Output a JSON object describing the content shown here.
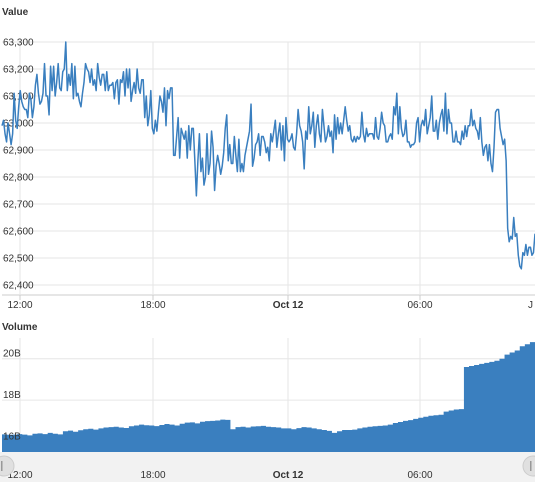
{
  "colors": {
    "line": "#3a7fbf",
    "bar": "#3a7fbf",
    "grid": "#e6e6e6",
    "nav_bg": "#f2f2f2",
    "nav_handle": "#e0e0e0"
  },
  "icons": {
    "nav_left": "circle-handle",
    "nav_right": "circle-handle"
  },
  "chart_data": [
    {
      "type": "line",
      "title": "Value",
      "ylim": [
        62400,
        63300
      ],
      "y_ticks": [
        "62,400",
        "62,500",
        "62,600",
        "62,700",
        "62,800",
        "62,900",
        "63,000",
        "63,100",
        "63,200",
        "63,300"
      ],
      "x_ticks": [
        {
          "label": "12:00",
          "bold": false
        },
        {
          "label": "18:00",
          "bold": false
        },
        {
          "label": "Oct 12",
          "bold": true
        },
        {
          "label": "06:00",
          "bold": false
        },
        {
          "label": "J",
          "bold": false
        }
      ],
      "grid": true,
      "series": [
        {
          "values": [
            62990,
            63010,
            62960,
            62930,
            63000,
            62960,
            62920,
            62960,
            63110,
            63010,
            62980,
            63060,
            63120,
            63080,
            63060,
            63050,
            63050,
            63020,
            63110,
            63090,
            63020,
            63060,
            63140,
            63180,
            63110,
            63070,
            63080,
            63110,
            63220,
            63100,
            63100,
            63030,
            63210,
            63120,
            63210,
            63100,
            63150,
            63220,
            63130,
            63120,
            63190,
            63200,
            63300,
            63120,
            63180,
            63140,
            63220,
            63090,
            63210,
            63100,
            63110,
            63080,
            63060,
            63110,
            63150,
            63220,
            63200,
            63190,
            63150,
            63200,
            63140,
            63160,
            63120,
            63220,
            63170,
            63140,
            63180,
            63180,
            63120,
            63190,
            63120,
            63140,
            63140,
            63150,
            63090,
            63150,
            63160,
            63070,
            63160,
            63150,
            63190,
            63100,
            63200,
            63130,
            63200,
            63080,
            63120,
            63150,
            63110,
            63200,
            63130,
            63110,
            63160,
            63160,
            63020,
            63100,
            62990,
            63030,
            63120,
            62980,
            62960,
            63010,
            62970,
            63040,
            63100,
            63080,
            63040,
            63130,
            62990,
            63120,
            63090,
            63130,
            63130,
            62880,
            62880,
            62950,
            63020,
            62870,
            62980,
            62960,
            62940,
            62970,
            62870,
            62990,
            62900,
            62980,
            62980,
            62860,
            62730,
            62860,
            62960,
            62820,
            62870,
            62770,
            62800,
            62960,
            62810,
            62850,
            62970,
            62910,
            62750,
            62840,
            62880,
            62850,
            62810,
            62840,
            62890,
            62980,
            63030,
            62860,
            62920,
            62850,
            62850,
            62950,
            62880,
            62820,
            62940,
            62820,
            62850,
            62820,
            62880,
            62910,
            62940,
            62970,
            63070,
            62840,
            62870,
            62920,
            62930,
            62960,
            62880,
            62950,
            62950,
            62930,
            62890,
            62910,
            62860,
            62960,
            62930,
            62970,
            63010,
            62910,
            62960,
            63000,
            62900,
            62990,
            62860,
            63020,
            62940,
            62930,
            62940,
            62960,
            62910,
            62900,
            62960,
            63050,
            62990,
            62970,
            62930,
            62830,
            62970,
            62940,
            63060,
            62960,
            62990,
            63040,
            62910,
            62990,
            63030,
            62960,
            62930,
            63050,
            62990,
            62930,
            62950,
            62990,
            62950,
            62970,
            62890,
            63030,
            62940,
            63020,
            62960,
            63000,
            62960,
            63010,
            63060,
            63010,
            62970,
            62990,
            62940,
            62930,
            62950,
            62930,
            62950,
            62940,
            62950,
            63040,
            62960,
            62930,
            62980,
            62950,
            62960,
            62960,
            62960,
            62940,
            63020,
            62950,
            62940,
            62980,
            63040,
            63000,
            62990,
            62930,
            62930,
            62950,
            62960,
            62940,
            63060,
            63030,
            63110,
            62960,
            63060,
            62980,
            62950,
            62960,
            63010,
            62930,
            62930,
            62910,
            62920,
            62920,
            62930,
            63000,
            63020,
            62930,
            62990,
            63010,
            62990,
            63050,
            62960,
            62990,
            63020,
            63100,
            62970,
            62970,
            63010,
            62940,
            63000,
            63030,
            63050,
            62970,
            63110,
            62960,
            63050,
            63000,
            63000,
            62930,
            62930,
            62970,
            62930,
            62930,
            62920,
            62970,
            62940,
            62990,
            62950,
            62990,
            62990,
            63050,
            62990,
            63010,
            62980,
            62970,
            62940,
            63020,
            62930,
            62880,
            62910,
            62920,
            62860,
            62920,
            62850,
            62820,
            62910,
            63040,
            63050,
            63050,
            62980,
            62950,
            62920,
            62940,
            62860,
            62610,
            62560,
            62580,
            62570,
            62650,
            62580,
            62590,
            62510,
            62470,
            62460,
            62520,
            62510,
            62550,
            62510,
            62540,
            62540,
            62510,
            62520,
            62590
          ]
        }
      ]
    },
    {
      "type": "area",
      "title": "Volume",
      "ylim": [
        15500000000,
        21000000000
      ],
      "y_ticks": [
        "16B",
        "18B",
        "20B"
      ],
      "x_ticks": [
        {
          "label": "12:00",
          "bold": false
        },
        {
          "label": "18:00",
          "bold": false
        },
        {
          "label": "Oct 12",
          "bold": true
        },
        {
          "label": "06:00",
          "bold": false
        }
      ],
      "grid": true,
      "series": [
        {
          "values": [
            16350000000,
            16330000000,
            16340000000,
            16360000000,
            16340000000,
            16300000000,
            16380000000,
            16400000000,
            16360000000,
            16420000000,
            16380000000,
            16350000000,
            16500000000,
            16530000000,
            16480000000,
            16550000000,
            16600000000,
            16620000000,
            16580000000,
            16640000000,
            16680000000,
            16700000000,
            16720000000,
            16680000000,
            16660000000,
            16740000000,
            16780000000,
            16820000000,
            16790000000,
            16780000000,
            16750000000,
            16800000000,
            16850000000,
            16820000000,
            16780000000,
            16860000000,
            16920000000,
            16930000000,
            16880000000,
            16960000000,
            16990000000,
            17000000000,
            17020000000,
            17060000000,
            17050000000,
            16600000000,
            16700000000,
            16720000000,
            16680000000,
            16730000000,
            16740000000,
            16760000000,
            16720000000,
            16700000000,
            16680000000,
            16640000000,
            16640000000,
            16600000000,
            16650000000,
            16700000000,
            16680000000,
            16640000000,
            16600000000,
            16560000000,
            16520000000,
            16420000000,
            16500000000,
            16560000000,
            16560000000,
            16580000000,
            16640000000,
            16680000000,
            16720000000,
            16740000000,
            16760000000,
            16780000000,
            16820000000,
            16900000000,
            16950000000,
            17000000000,
            17040000000,
            17100000000,
            17150000000,
            17200000000,
            17250000000,
            17270000000,
            17300000000,
            17450000000,
            17500000000,
            17550000000,
            17570000000,
            19600000000,
            19650000000,
            19700000000,
            19750000000,
            19800000000,
            19850000000,
            19900000000,
            20000000000,
            20200000000,
            20300000000,
            20400000000,
            20600000000,
            20700000000,
            20800000000
          ]
        }
      ]
    }
  ]
}
